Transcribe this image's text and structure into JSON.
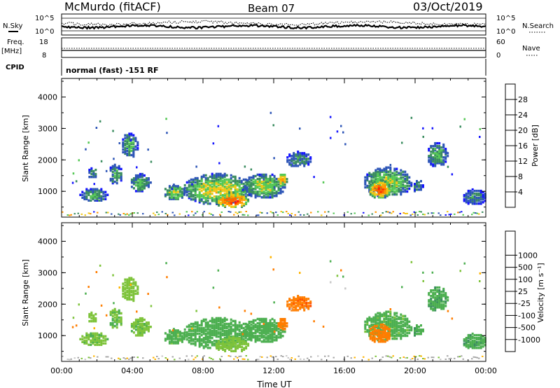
{
  "header": {
    "station": "McMurdo (fitACF)",
    "beam": "Beam 07",
    "date": "03/Oct/2019"
  },
  "top_panels": {
    "nsky_label": "N.Sky",
    "nsearch_label": "N.Search",
    "noise_ticks_left": [
      "10^5",
      "10^0"
    ],
    "noise_ticks_right": [
      "10^5",
      "10^0"
    ],
    "freq_label": "Freq.",
    "freq_unit": "[MHz]",
    "freq_ticks": [
      "18",
      "8"
    ],
    "nave_label": "Nave",
    "nave_ticks": [
      "60",
      "0"
    ],
    "cpid_label": "CPID",
    "cpid_value": "normal (fast) -151 RF"
  },
  "colors": {
    "power": [
      "#1414ff",
      "#2d55b7",
      "#3a8c5f",
      "#55c855",
      "#f0c814",
      "#ff9600",
      "#ff6400",
      "#ff1e00"
    ],
    "velocity": [
      "#ff0000",
      "#ff4b00",
      "#ff7d00",
      "#ffb400",
      "#c8c8c8",
      "#7ec33b",
      "#4caf50",
      "#3a8c5f",
      "#2d55b7",
      "#1414dc"
    ],
    "ground_scatter": "#a8a8a8"
  },
  "chart_data": [
    {
      "type": "heatmap",
      "panel": "power",
      "ylabel": "Slant Range [km]",
      "ylim": [
        180,
        4590
      ],
      "yticks": [
        "1000",
        "2000",
        "3000",
        "4000"
      ],
      "xlim": [
        0,
        24
      ],
      "colorbar": {
        "label": "Power [dB]",
        "ticks": [
          "4",
          "8",
          "12",
          "16",
          "20",
          "24",
          "28"
        ],
        "range": [
          0,
          32
        ]
      },
      "echo_regions": [
        {
          "t0": 1.0,
          "t1": 2.6,
          "r0": 700,
          "r1": 1150,
          "peak": 12
        },
        {
          "t0": 1.4,
          "t1": 2.0,
          "r0": 1450,
          "r1": 1800,
          "peak": 10
        },
        {
          "t0": 2.6,
          "t1": 3.4,
          "r0": 1250,
          "r1": 1900,
          "peak": 12
        },
        {
          "t0": 3.3,
          "t1": 4.3,
          "r0": 2100,
          "r1": 2900,
          "peak": 12
        },
        {
          "t0": 3.8,
          "t1": 5.0,
          "r0": 1000,
          "r1": 1600,
          "peak": 13
        },
        {
          "t0": 5.7,
          "t1": 7.0,
          "r0": 750,
          "r1": 1250,
          "peak": 16
        },
        {
          "t0": 6.8,
          "t1": 10.8,
          "r0": 600,
          "r1": 1600,
          "peak": 18
        },
        {
          "t0": 8.6,
          "t1": 10.6,
          "r0": 500,
          "r1": 1000,
          "peak": 28
        },
        {
          "t0": 10.2,
          "t1": 12.6,
          "r0": 800,
          "r1": 1600,
          "peak": 16
        },
        {
          "t0": 12.1,
          "t1": 12.8,
          "r0": 1200,
          "r1": 1600,
          "peak": 22
        },
        {
          "t0": 12.6,
          "t1": 14.1,
          "r0": 1800,
          "r1": 2300,
          "peak": 10
        },
        {
          "t0": 17.0,
          "t1": 19.8,
          "r0": 850,
          "r1": 1800,
          "peak": 16
        },
        {
          "t0": 17.3,
          "t1": 18.6,
          "r0": 800,
          "r1": 1400,
          "peak": 28
        },
        {
          "t0": 19.8,
          "t1": 20.4,
          "r0": 1000,
          "r1": 1400,
          "peak": 10
        },
        {
          "t0": 20.6,
          "t1": 21.8,
          "r0": 1800,
          "r1": 2600,
          "peak": 12
        },
        {
          "t0": 22.6,
          "t1": 24.0,
          "r0": 600,
          "r1": 1100,
          "peak": 10
        }
      ]
    },
    {
      "type": "heatmap",
      "panel": "velocity",
      "ylabel": "Slant Range [km]",
      "xlabel": "Time UT",
      "ylim": [
        180,
        4590
      ],
      "yticks": [
        "1000",
        "2000",
        "3000",
        "4000"
      ],
      "xlim": [
        0,
        24
      ],
      "xticks": [
        "00:00",
        "04:00",
        "08:00",
        "12:00",
        "16:00",
        "20:00",
        "00:00"
      ],
      "colorbar": {
        "label": "Velocity [m s⁻¹]",
        "ticks": [
          "-1000",
          "-500",
          "-100",
          "-25",
          "25",
          "100",
          "500",
          "1000"
        ]
      },
      "echo_regions": [
        {
          "t0": 1.0,
          "t1": 2.6,
          "r0": 700,
          "r1": 1150,
          "v": 80
        },
        {
          "t0": 1.4,
          "t1": 2.0,
          "r0": 1450,
          "r1": 1800,
          "v": 60
        },
        {
          "t0": 2.6,
          "t1": 3.4,
          "r0": 1250,
          "r1": 1900,
          "v": 90
        },
        {
          "t0": 3.3,
          "t1": 4.3,
          "r0": 2100,
          "r1": 2900,
          "v": 60
        },
        {
          "t0": 3.8,
          "t1": 5.0,
          "r0": 1000,
          "r1": 1600,
          "v": 80
        },
        {
          "t0": 5.7,
          "t1": 7.0,
          "r0": 750,
          "r1": 1250,
          "v": 150
        },
        {
          "t0": 6.8,
          "t1": 10.8,
          "r0": 600,
          "r1": 1600,
          "v": 300
        },
        {
          "t0": 8.6,
          "t1": 10.6,
          "r0": 500,
          "r1": 1000,
          "v": 60
        },
        {
          "t0": 10.2,
          "t1": 12.6,
          "r0": 800,
          "r1": 1600,
          "v": 300
        },
        {
          "t0": 12.6,
          "t1": 14.1,
          "r0": 1800,
          "r1": 2300,
          "v": -200
        },
        {
          "t0": 17.0,
          "t1": 19.8,
          "r0": 850,
          "r1": 1800,
          "v": -400
        },
        {
          "t0": 19.8,
          "t1": 20.4,
          "r0": 1000,
          "r1": 1400,
          "v": 150
        },
        {
          "t0": 20.6,
          "t1": 21.8,
          "r0": 1800,
          "r1": 2600,
          "v": -250
        },
        {
          "t0": 22.6,
          "t1": 24.0,
          "r0": 600,
          "r1": 1100,
          "v": 400
        }
      ]
    }
  ]
}
